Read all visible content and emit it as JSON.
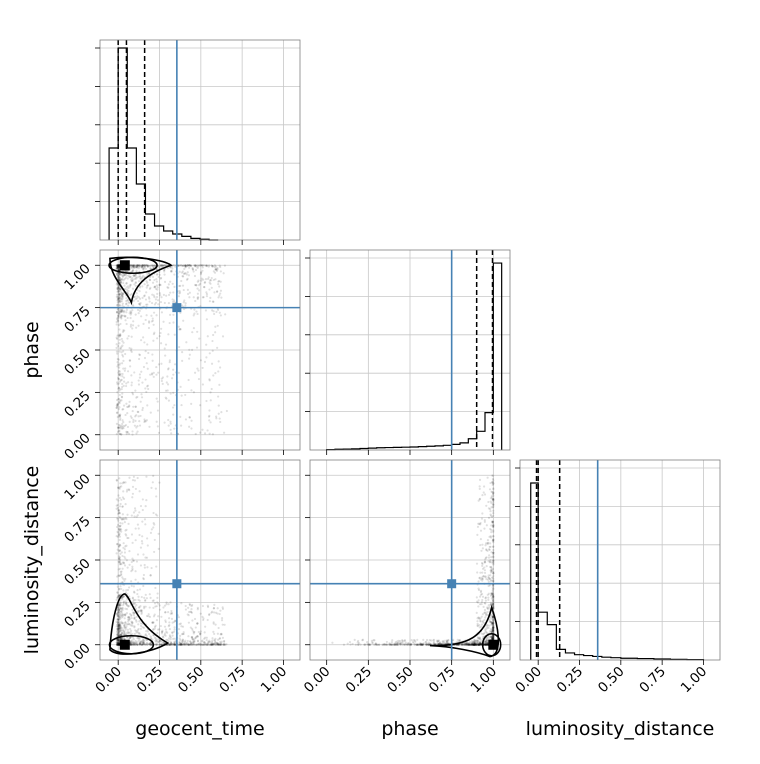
{
  "chart_data": {
    "type": "corner",
    "parameters": [
      "geocent_time",
      "phase",
      "luminosity_distance"
    ],
    "tick_labels": [
      "0.00",
      "0.25",
      "0.50",
      "0.75",
      "1.00"
    ],
    "truth": {
      "geocent_time": 0.355,
      "phase": 0.75,
      "luminosity_distance": 0.36
    },
    "truth_color": "#4682b4",
    "grid": true,
    "histograms": {
      "geocent_time": {
        "xlim": [
          -0.11,
          1.1
        ],
        "ylim": [
          0,
          1.0
        ],
        "quantiles": [
          0.0,
          0.05,
          0.16
        ],
        "bin_edges": [
          -0.055,
          0.0,
          0.055,
          0.11,
          0.165,
          0.22,
          0.275,
          0.33,
          0.385,
          0.44,
          0.495,
          0.55,
          0.605
        ],
        "counts": [
          0.46,
          0.96,
          0.46,
          0.28,
          0.13,
          0.07,
          0.045,
          0.03,
          0.018,
          0.008,
          0.004,
          0.0
        ]
      },
      "phase": {
        "xlim": [
          -0.1,
          1.1
        ],
        "ylim": [
          0,
          1.07
        ],
        "quantiles": [
          0.9,
          0.995
        ],
        "bin_edges": [
          0.0,
          0.05,
          0.1,
          0.15,
          0.2,
          0.25,
          0.3,
          0.35,
          0.4,
          0.45,
          0.5,
          0.55,
          0.6,
          0.65,
          0.7,
          0.75,
          0.8,
          0.85,
          0.9,
          0.95,
          1.0,
          1.05
        ],
        "counts": [
          0.002,
          0.004,
          0.005,
          0.006,
          0.008,
          0.01,
          0.012,
          0.013,
          0.014,
          0.015,
          0.016,
          0.018,
          0.02,
          0.022,
          0.025,
          0.03,
          0.038,
          0.06,
          0.1,
          0.2,
          1.0
        ]
      },
      "luminosity_distance": {
        "xlim": [
          -0.11,
          1.1
        ],
        "ylim": [
          0,
          1.13
        ],
        "quantiles": [
          -0.01,
          0.0,
          0.13
        ],
        "bin_edges": [
          -0.045,
          0.0,
          0.055,
          0.11,
          0.165,
          0.22,
          0.275,
          0.33,
          0.385,
          0.44,
          0.5,
          0.6,
          0.7,
          0.8,
          0.9,
          1.0
        ],
        "counts": [
          1.0,
          0.27,
          0.2,
          0.06,
          0.04,
          0.03,
          0.025,
          0.02,
          0.016,
          0.013,
          0.01,
          0.008,
          0.006,
          0.004,
          0.002
        ]
      }
    },
    "scatter": [
      {
        "x": "geocent_time",
        "y": "phase",
        "xlim": [
          -0.11,
          1.1
        ],
        "ylim": [
          -0.09,
          1.09
        ],
        "mode": {
          "x": 0.04,
          "y": 1.0
        }
      },
      {
        "x": "geocent_time",
        "y": "luminosity_distance",
        "xlim": [
          -0.11,
          1.1
        ],
        "ylim": [
          -0.09,
          1.09
        ],
        "mode": {
          "x": 0.04,
          "y": 0.0
        }
      },
      {
        "x": "phase",
        "y": "luminosity_distance",
        "xlim": [
          -0.1,
          1.1
        ],
        "ylim": [
          -0.09,
          1.09
        ],
        "mode": {
          "x": 1.0,
          "y": 0.0
        }
      }
    ]
  }
}
